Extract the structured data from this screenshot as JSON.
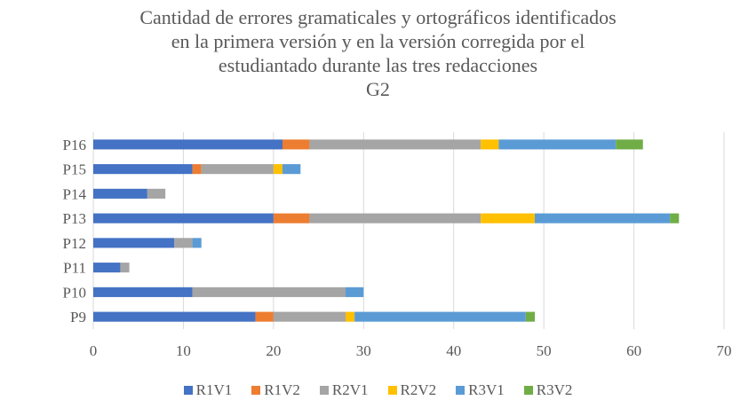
{
  "chart_data": {
    "type": "bar",
    "orientation": "horizontal",
    "stacked": true,
    "title_lines": [
      "Cantidad de errores gramaticales y ortográficos identificados",
      "en la primera versión y en la versión corregida por el",
      "estudiantado durante las tres redacciones",
      "G2"
    ],
    "categories": [
      "P9",
      "P10",
      "P11",
      "P12",
      "P13",
      "P14",
      "P15",
      "P16"
    ],
    "xlim": [
      0,
      70
    ],
    "xticks": [
      0,
      10,
      20,
      30,
      40,
      50,
      60,
      70
    ],
    "grid": "vertical",
    "legend_position": "bottom",
    "series": [
      {
        "name": "R1V1",
        "color": "#4472C4",
        "values": [
          18,
          11,
          3,
          9,
          20,
          6,
          11,
          21
        ]
      },
      {
        "name": "R1V2",
        "color": "#ED7D31",
        "values": [
          2,
          0,
          0,
          0,
          4,
          0,
          1,
          3
        ]
      },
      {
        "name": "R2V1",
        "color": "#A5A5A5",
        "values": [
          8,
          17,
          1,
          2,
          19,
          2,
          8,
          19
        ]
      },
      {
        "name": "R2V2",
        "color": "#FFC000",
        "values": [
          1,
          0,
          0,
          0,
          6,
          0,
          1,
          2
        ]
      },
      {
        "name": "R3V1",
        "color": "#5B9BD5",
        "values": [
          19,
          2,
          0,
          1,
          15,
          0,
          2,
          13
        ]
      },
      {
        "name": "R3V2",
        "color": "#70AD47",
        "values": [
          1,
          0,
          0,
          0,
          1,
          0,
          0,
          3
        ]
      }
    ]
  }
}
